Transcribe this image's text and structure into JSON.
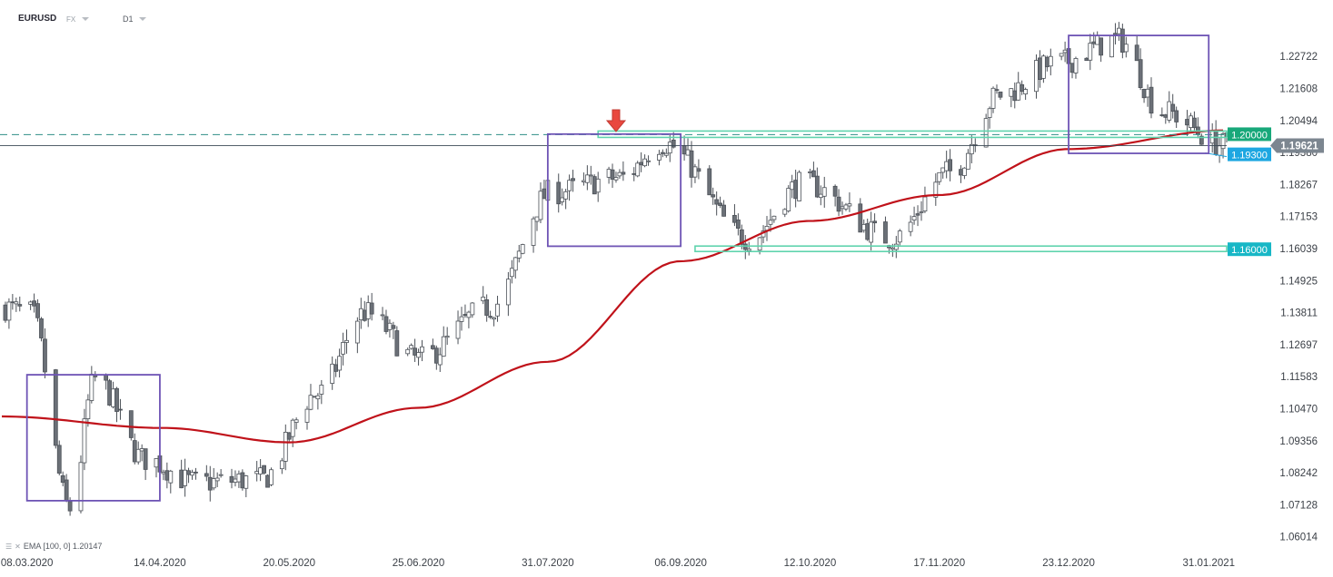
{
  "header": {
    "symbol": "EURUSD",
    "market": "FX",
    "timeframe": "D1"
  },
  "indicator": {
    "label": "EMA [100, 0] 1.20147",
    "color": "#c0121a",
    "icon_names": [
      "settings-icon",
      "close-icon"
    ]
  },
  "colors": {
    "candle_up": "#ffffff",
    "candle_down": "#6b7077",
    "candle_outline": "#4c5158",
    "box": "#6e54b5",
    "zone": "#5fd3ad",
    "price_line": "#3c4a56",
    "level_1930": "#1ea7e1",
    "level_12000": "#18a87a",
    "level_11600": "#18b7c6",
    "arrow": "#e9483f"
  },
  "chart_data": {
    "type": "candlestick",
    "instrument": "EURUSD",
    "timeframe": "D1",
    "y_range": [
      1.055,
      1.238
    ],
    "y_ticks": [
      1.22722,
      1.21608,
      1.20494,
      1.1938,
      1.18267,
      1.17153,
      1.16039,
      1.14925,
      1.13811,
      1.12697,
      1.11583,
      1.1047,
      1.09356,
      1.08242,
      1.07128,
      1.06014
    ],
    "x_labels": [
      "08.03.2020",
      "14.04.2020",
      "20.05.2020",
      "25.06.2020",
      "31.07.2020",
      "06.09.2020",
      "12.10.2020",
      "17.11.2020",
      "23.12.2020",
      "31.01.2021"
    ],
    "current_price": 1.19621,
    "levels": [
      {
        "label": "1.20000",
        "value": 1.2,
        "style": "dashed"
      },
      {
        "label": "1.19300",
        "value": 1.193,
        "style": "solid"
      },
      {
        "label": "1.16000",
        "value": 1.16,
        "style": "zone"
      }
    ],
    "annotations": [
      {
        "kind": "down-arrow",
        "near": "06.09.2020",
        "value": 1.2011
      },
      {
        "kind": "box",
        "from": "08.03.2020",
        "to": "14.04.2020",
        "top": 1.1165,
        "bottom": 1.0727
      },
      {
        "kind": "box",
        "from": "31.07.2020",
        "to": "06.09.2020",
        "top": 1.2002,
        "bottom": 1.1612
      },
      {
        "kind": "box",
        "from": "23.12.2020",
        "to": "31.01.2021",
        "top": 1.2345,
        "bottom": 1.1935
      }
    ],
    "ohlc_anchors": [
      {
        "date": "2020-03-01",
        "close": 1.14
      },
      {
        "date": "2020-03-09",
        "close": 1.138
      },
      {
        "date": "2020-03-20",
        "close": 1.07
      },
      {
        "date": "2020-03-27",
        "close": 1.115
      },
      {
        "date": "2020-04-10",
        "close": 1.087
      },
      {
        "date": "2020-04-24",
        "close": 1.079
      },
      {
        "date": "2020-05-12",
        "close": 1.08
      },
      {
        "date": "2020-05-28",
        "close": 1.11
      },
      {
        "date": "2020-06-10",
        "close": 1.138
      },
      {
        "date": "2020-06-25",
        "close": 1.122
      },
      {
        "date": "2020-07-15",
        "close": 1.14
      },
      {
        "date": "2020-08-01",
        "close": 1.18
      },
      {
        "date": "2020-08-20",
        "close": 1.185
      },
      {
        "date": "2020-09-01",
        "close": 1.197
      },
      {
        "date": "2020-09-25",
        "close": 1.164
      },
      {
        "date": "2020-10-10",
        "close": 1.183
      },
      {
        "date": "2020-11-04",
        "close": 1.164
      },
      {
        "date": "2020-11-20",
        "close": 1.187
      },
      {
        "date": "2020-12-04",
        "close": 1.214
      },
      {
        "date": "2020-12-20",
        "close": 1.225
      },
      {
        "date": "2021-01-06",
        "close": 1.233
      },
      {
        "date": "2021-01-18",
        "close": 1.208
      },
      {
        "date": "2021-02-05",
        "close": 1.1962
      }
    ],
    "ema_anchors": [
      {
        "date": "2020-03-01",
        "value": 1.102
      },
      {
        "date": "2020-04-15",
        "value": 1.098
      },
      {
        "date": "2020-05-20",
        "value": 1.093
      },
      {
        "date": "2020-06-25",
        "value": 1.105
      },
      {
        "date": "2020-07-31",
        "value": 1.121
      },
      {
        "date": "2020-09-06",
        "value": 1.156
      },
      {
        "date": "2020-10-12",
        "value": 1.17
      },
      {
        "date": "2020-11-17",
        "value": 1.179
      },
      {
        "date": "2020-12-23",
        "value": 1.195
      },
      {
        "date": "2021-02-05",
        "value": 1.2015
      }
    ]
  }
}
